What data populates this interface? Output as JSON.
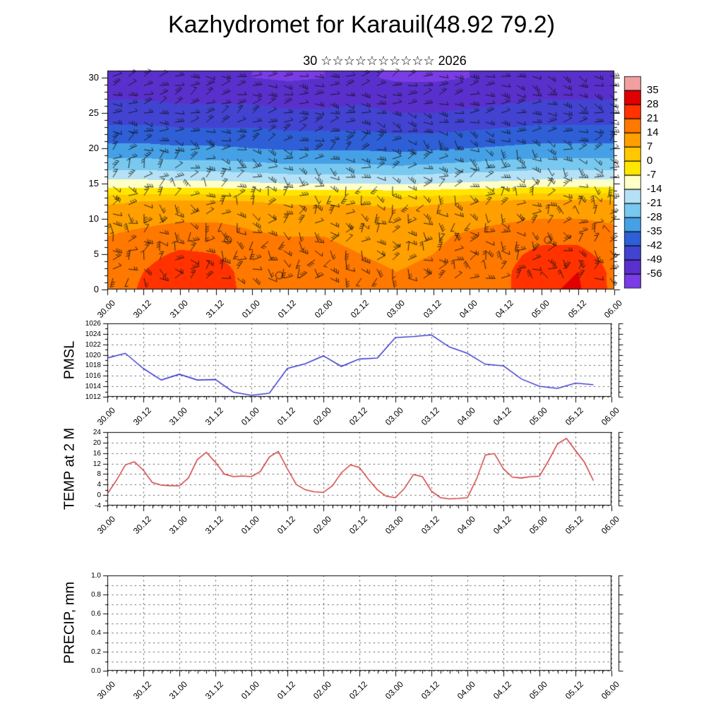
{
  "title": "Kazhydromet for Karauil(48.92 79.2)",
  "time_axis": {
    "labels": [
      "30.00",
      "30.12",
      "31.00",
      "31.12",
      "01.00",
      "01.12",
      "02.00",
      "02.12",
      "03.00",
      "03.12",
      "04.00",
      "04.12",
      "05.00",
      "05.12",
      "06.00"
    ],
    "hours": [
      0,
      12,
      24,
      36,
      48,
      60,
      72,
      84,
      96,
      108,
      120,
      132,
      144,
      156,
      168
    ],
    "range": [
      0,
      168
    ],
    "minor_step": 3,
    "major_step": 12
  },
  "chart_data": [
    {
      "type": "heatmap",
      "panel": "cross_section",
      "title": "30 ☆☆☆☆☆☆☆☆☆☆ 2026",
      "ylabel": "",
      "ylim": [
        0,
        31
      ],
      "yticks": [
        0,
        5,
        10,
        15,
        20,
        25,
        30
      ],
      "x_tick_labels": [
        "30.00",
        "30.12",
        "31.00",
        "31.12",
        "01.00",
        "01.12",
        "02.00",
        "02.12",
        "03.00",
        "03.12",
        "04.00",
        "04.12",
        "05.00",
        "05.12",
        "06.00"
      ],
      "x_hours": [
        0,
        12,
        24,
        36,
        48,
        60,
        72,
        84,
        96,
        108,
        120,
        132,
        144,
        156,
        168
      ],
      "heights": [
        30,
        27.5,
        25,
        22.5,
        20,
        17.5,
        15,
        12.5,
        10,
        7.5,
        5,
        2.5,
        0
      ],
      "values": [
        [
          -54,
          -54,
          -55,
          -55,
          -56,
          -57,
          -56,
          -55,
          -57,
          -57,
          -56,
          -55,
          -54,
          -54,
          -54
        ],
        [
          -50,
          -50,
          -51,
          -51,
          -51,
          -52,
          -52,
          -51,
          -53,
          -53,
          -52,
          -51,
          -50,
          -50,
          -50
        ],
        [
          -46,
          -46,
          -47,
          -47,
          -47,
          -48,
          -48,
          -47,
          -49,
          -49,
          -48,
          -47,
          -46,
          -46,
          -46
        ],
        [
          -40,
          -40,
          -41,
          -41,
          -41,
          -42,
          -42,
          -42,
          -43,
          -43,
          -42,
          -41,
          -40,
          -40,
          -40
        ],
        [
          -33,
          -33,
          -34,
          -34,
          -35,
          -36,
          -36,
          -36,
          -37,
          -36,
          -35,
          -34,
          -33,
          -33,
          -33
        ],
        [
          -24,
          -24,
          -25,
          -25,
          -26,
          -27,
          -27,
          -27,
          -28,
          -27,
          -26,
          -25,
          -24,
          -24,
          -24
        ],
        [
          -11,
          -11,
          -12,
          -12,
          -13,
          -14,
          -14,
          -14,
          -15,
          -14,
          -13,
          -12,
          -11,
          -11,
          -11
        ],
        [
          6,
          7,
          8,
          8,
          7,
          6,
          6,
          6,
          5,
          6,
          7,
          8,
          9,
          9,
          8
        ],
        [
          11,
          12,
          13,
          13,
          12,
          11,
          11,
          11,
          10,
          11,
          12,
          13,
          14,
          14,
          13
        ],
        [
          14,
          16,
          18,
          18,
          15,
          14,
          14,
          13,
          12,
          13,
          15,
          17,
          19,
          19,
          16
        ],
        [
          16,
          19,
          22,
          21,
          17,
          15,
          15,
          14,
          13,
          14,
          16,
          19,
          23,
          23,
          18
        ],
        [
          17,
          21,
          25,
          24,
          18,
          16,
          16,
          15,
          14,
          15,
          17,
          20,
          26,
          28,
          19
        ],
        [
          17,
          22,
          26,
          25,
          18,
          16,
          16,
          15,
          14,
          15,
          17,
          20,
          27,
          29,
          19
        ]
      ],
      "wind_barbs": true,
      "calm_circles": [
        {
          "t": 40,
          "h": 7
        },
        {
          "t": 57,
          "h": 2
        },
        {
          "t": 146,
          "h": 7
        }
      ],
      "colorbar": {
        "tick_labels": [
          35,
          28,
          21,
          14,
          7,
          0,
          -7,
          -14,
          -21,
          -28,
          -35,
          -42,
          -49,
          -56
        ],
        "colors": [
          "#f0a0a0",
          "#e00000",
          "#ff3200",
          "#ff7800",
          "#ffa000",
          "#ffc800",
          "#ffe600",
          "#ffffc8",
          "#b4e1f5",
          "#78c8f0",
          "#46a0e6",
          "#2f5fd6",
          "#4343d2",
          "#5a30cc",
          "#7a3ce6"
        ]
      }
    },
    {
      "type": "line",
      "panel": "pmsl",
      "ylabel": "PMSL",
      "color": "#2222cc",
      "ylim": [
        1012,
        1026
      ],
      "yticks": [
        1012,
        1014,
        1016,
        1018,
        1020,
        1022,
        1024,
        1026
      ],
      "ytick_labels": [
        "1012",
        "1014",
        "1016",
        "1018",
        "1020",
        "1022",
        "1024",
        "1026"
      ],
      "y_minor": 1,
      "x_tick_labels": [
        "30.00",
        "30.12",
        "31.00",
        "31.12",
        "01.00",
        "01.12",
        "02.00",
        "02.12",
        "03.00",
        "03.12",
        "04.00",
        "04.12",
        "05.00",
        "05.12",
        "06.00"
      ],
      "x_hours": [
        0,
        6,
        12,
        18,
        24,
        30,
        36,
        42,
        48,
        54,
        60,
        66,
        72,
        78,
        84,
        90,
        96,
        102,
        108,
        114,
        120,
        126,
        132,
        138,
        144,
        150,
        156,
        162
      ],
      "values": [
        1019.4,
        1020.3,
        1017.4,
        1015.2,
        1016.3,
        1015.2,
        1015.3,
        1012.9,
        1012.3,
        1012.7,
        1017.4,
        1018.3,
        1019.8,
        1017.8,
        1019.2,
        1019.4,
        1023.3,
        1023.5,
        1023.8,
        1021.5,
        1020.3,
        1018.2,
        1017.9,
        1015.4,
        1014.0,
        1013.6,
        1014.6,
        1014.3
      ]
    },
    {
      "type": "line",
      "panel": "temp",
      "ylabel": "TEMP at 2 M",
      "color": "#cc2222",
      "ylim": [
        -4,
        24
      ],
      "yticks": [
        -4,
        0,
        4,
        8,
        12,
        16,
        20,
        24
      ],
      "ytick_labels": [
        "-4",
        "0",
        "4",
        "8",
        "12",
        "16",
        "20",
        "24"
      ],
      "y_minor": 2,
      "x_tick_labels": [
        "30.00",
        "30.12",
        "31.00",
        "31.12",
        "01.00",
        "01.12",
        "02.00",
        "02.12",
        "03.00",
        "03.12",
        "04.00",
        "04.12",
        "05.00",
        "05.12",
        "06.00"
      ],
      "x_hours": [
        0,
        3,
        6,
        9,
        12,
        15,
        18,
        21,
        24,
        27,
        30,
        33,
        36,
        39,
        42,
        45,
        48,
        51,
        54,
        57,
        60,
        63,
        66,
        69,
        72,
        75,
        78,
        81,
        84,
        87,
        90,
        93,
        96,
        99,
        102,
        105,
        108,
        111,
        114,
        117,
        120,
        123,
        126,
        129,
        132,
        135,
        138,
        141,
        144,
        147,
        150,
        153,
        156,
        159,
        162
      ],
      "values": [
        0.5,
        5.5,
        11.5,
        12.7,
        9.5,
        4.8,
        3.8,
        3.6,
        3.5,
        6.5,
        13.5,
        16.3,
        12.5,
        8,
        7,
        7.3,
        7,
        9,
        14.5,
        16.6,
        10,
        4,
        2,
        1.2,
        1,
        3.5,
        8.5,
        11.5,
        10.5,
        6,
        2,
        -0.5,
        -1,
        2.5,
        7.8,
        7,
        1.5,
        -1,
        -1.5,
        -1.3,
        -1,
        6,
        15.3,
        15.8,
        10,
        6.8,
        6.5,
        7,
        7.2,
        13,
        19.5,
        21.6,
        17,
        12.5,
        5.5
      ]
    },
    {
      "type": "line",
      "panel": "precip",
      "ylabel": "PRECIP, mm",
      "color": "#2222cc",
      "ylim": [
        0,
        1
      ],
      "yticks": [
        0,
        0.2,
        0.4,
        0.6,
        0.8,
        1
      ],
      "ytick_labels": [
        "0.0",
        "0.2",
        "0.4",
        "0.6",
        "0.8",
        "1.0"
      ],
      "y_minor": 0.1,
      "y_grid_step": 0.1,
      "x_tick_labels": [
        "30.00",
        "30.12",
        "31.00",
        "31.12",
        "01.00",
        "01.12",
        "02.00",
        "02.12",
        "03.00",
        "03.12",
        "04.00",
        "04.12",
        "05.00",
        "05.12",
        "06.00"
      ],
      "x_hours": [],
      "values": []
    }
  ]
}
